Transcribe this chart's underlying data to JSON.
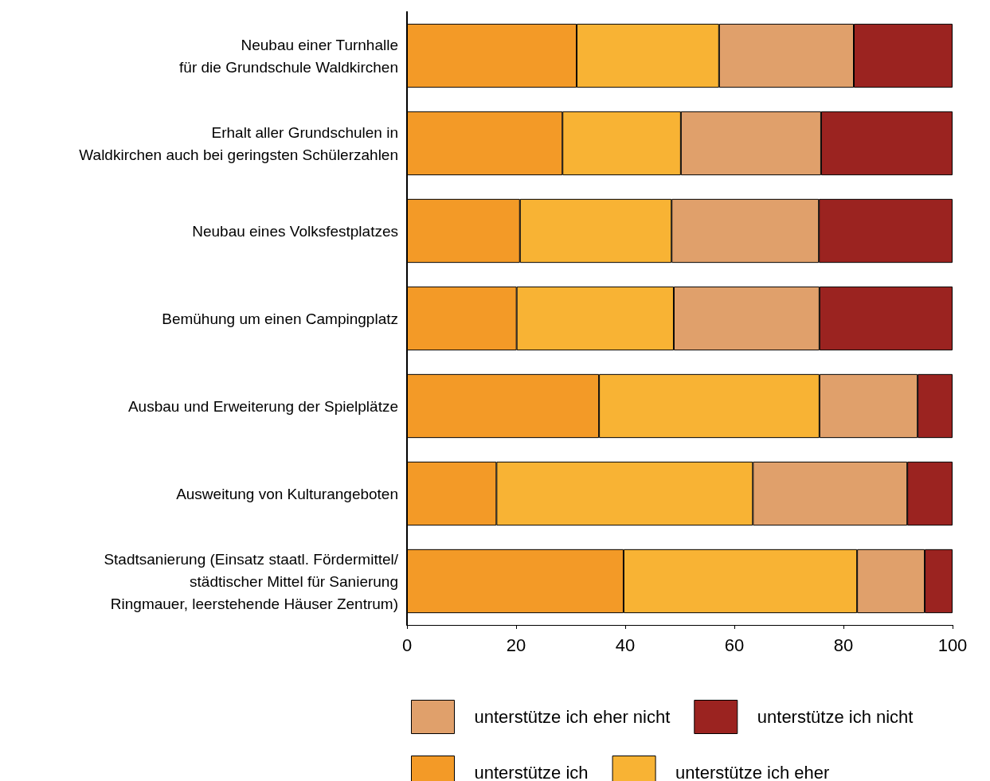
{
  "chart_data": {
    "type": "bar",
    "orientation": "horizontal",
    "stacked": true,
    "categories": [
      "Neubau einer Turnhalle\nfür die Grundschule Waldkirchen",
      "Erhalt aller Grundschulen in\nWaldkirchen auch bei geringsten Schülerzahlen",
      "Neubau eines Volksfestplatzes",
      "Bemühung um einen Campingplatz",
      "Ausbau und Erweiterung der Spielplätze",
      "Ausweitung von Kulturangeboten",
      "Stadtsanierung (Einsatz staatl. Fördermittel/\nstädtischer Mittel für Sanierung\nRingmauer, leerstehende Häuser Zentrum)"
    ],
    "series": [
      {
        "name": "unterstütze ich",
        "color": "#f39a27",
        "values": [
          31.1,
          28.5,
          20.7,
          20.1,
          35.2,
          16.4,
          39.7
        ]
      },
      {
        "name": "unterstütze ich eher",
        "color": "#f8b334",
        "values": [
          26.1,
          21.7,
          27.8,
          28.8,
          40.4,
          47.0,
          42.8
        ]
      },
      {
        "name": "unterstütze ich eher nicht",
        "color": "#e0a06b",
        "values": [
          24.7,
          25.7,
          27.0,
          26.7,
          18.0,
          28.3,
          12.4
        ]
      },
      {
        "name": "unterstütze ich nicht",
        "color": "#9b2320",
        "values": [
          18.1,
          24.1,
          24.5,
          24.4,
          6.4,
          8.3,
          5.1
        ]
      }
    ],
    "xlim": [
      0,
      100
    ],
    "xticks": [
      0,
      20,
      40,
      60,
      80,
      100
    ],
    "grid": false,
    "legend": "bottom"
  }
}
